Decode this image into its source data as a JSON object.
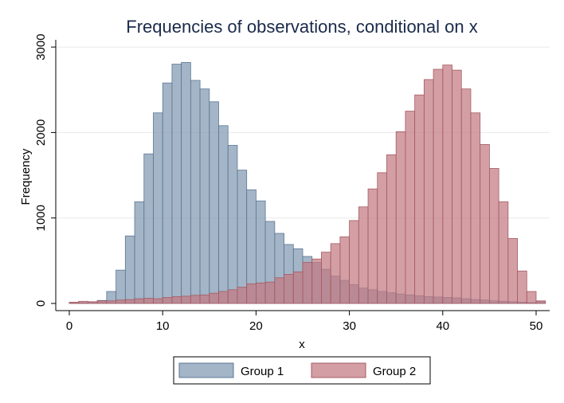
{
  "chart_data": {
    "type": "bar",
    "title": "Frequencies of observations, conditional on x",
    "xlabel": "x",
    "ylabel": "Frequency",
    "xlim": [
      -1,
      51
    ],
    "ylim": [
      0,
      3000
    ],
    "xticks": [
      0,
      10,
      20,
      30,
      40,
      50
    ],
    "yticks": [
      0,
      1000,
      2000,
      3000
    ],
    "grid": true,
    "legend_position": "bottom",
    "bin_width": 1,
    "bin_starts": [
      0,
      1,
      2,
      3,
      4,
      5,
      6,
      7,
      8,
      9,
      10,
      11,
      12,
      13,
      14,
      15,
      16,
      17,
      18,
      19,
      20,
      21,
      22,
      23,
      24,
      25,
      26,
      27,
      28,
      29,
      30,
      31,
      32,
      33,
      34,
      35,
      36,
      37,
      38,
      39,
      40,
      41,
      42,
      43,
      44,
      45,
      46,
      47,
      48,
      49,
      50
    ],
    "series": [
      {
        "name": "Group 1",
        "color": "#7f98b2",
        "values": [
          5,
          8,
          15,
          35,
          140,
          390,
          790,
          1190,
          1750,
          2230,
          2580,
          2800,
          2820,
          2610,
          2510,
          2360,
          2080,
          1850,
          1560,
          1330,
          1200,
          960,
          820,
          690,
          640,
          550,
          480,
          400,
          320,
          270,
          220,
          180,
          160,
          140,
          125,
          110,
          100,
          90,
          80,
          75,
          70,
          65,
          55,
          45,
          40,
          30,
          25,
          20,
          15,
          10,
          20
        ]
      },
      {
        "name": "Group 2",
        "color": "#c27a82",
        "values": [
          15,
          25,
          20,
          30,
          30,
          40,
          45,
          55,
          60,
          55,
          70,
          80,
          85,
          95,
          100,
          120,
          140,
          160,
          190,
          230,
          240,
          250,
          300,
          340,
          370,
          480,
          520,
          600,
          700,
          780,
          970,
          1130,
          1340,
          1530,
          1740,
          2010,
          2250,
          2440,
          2620,
          2740,
          2790,
          2730,
          2510,
          2230,
          1860,
          1580,
          1190,
          760,
          380,
          140,
          30
        ]
      }
    ]
  }
}
